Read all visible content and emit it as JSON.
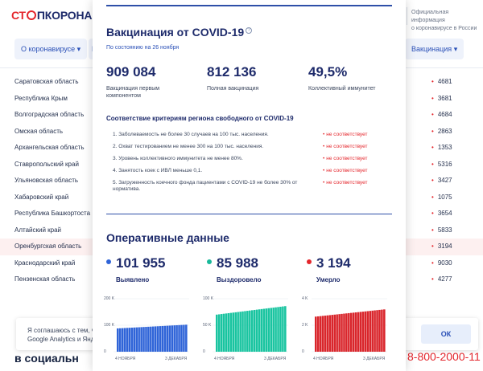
{
  "background": {
    "logo": {
      "part1": "СТ",
      "part2": "ПКОРОНАВИ"
    },
    "official_info": [
      "Официальная информация",
      "о коронавирусе в России"
    ],
    "nav": {
      "about": "О коронавирусе",
      "m": "М",
      "vaccination": "Вакцинация"
    },
    "regions": [
      {
        "name": "Саратовская область",
        "value": "4681"
      },
      {
        "name": "Республика Крым",
        "value": "3681"
      },
      {
        "name": "Волгоградская область",
        "value": "4684"
      },
      {
        "name": "Омская область",
        "value": "2863"
      },
      {
        "name": "Архангельская область",
        "value": "1353"
      },
      {
        "name": "Ставропольский край",
        "value": "5316"
      },
      {
        "name": "Ульяновская область",
        "value": "3427"
      },
      {
        "name": "Хабаровский край",
        "value": "1075"
      },
      {
        "name": "Республика Башкортоста",
        "value": "3654"
      },
      {
        "name": "Алтайский край",
        "value": "5833"
      },
      {
        "name": "Оренбургская область",
        "value": "3194",
        "highlight": true
      },
      {
        "name": "Краснодарский край",
        "value": "9030"
      },
      {
        "name": "Пензенская область",
        "value": "4277"
      }
    ],
    "cookie": {
      "line1": "Я соглашаюсь с тем, ч",
      "line2": "Google Analytics и Янд",
      "ok": "ОК"
    },
    "social": "в социальн",
    "phone": "8-800-2000-11"
  },
  "vaccination": {
    "title": "Вакцинация от COVID-19",
    "info_icon": "?",
    "date": "По состоянию на 26 ноября",
    "stats": [
      {
        "value": "909 084",
        "label": "Вакцинация первым компонентом"
      },
      {
        "value": "812 136",
        "label": "Полная вакцинация"
      },
      {
        "value": "49,5%",
        "label": "Коллективный иммунитет"
      }
    ],
    "criteria_title": "Соответствие критериям региона свободного от COVID-19",
    "criteria": [
      {
        "text": "1. Заболеваемость не более 30 случаев на 100 тыс. населения.",
        "status": "не соответствует"
      },
      {
        "text": "2. Охват тестированием не менее 300 на 100 тыс. населения.",
        "status": "не соответствует"
      },
      {
        "text": "3. Уровень коллективного иммунитета не менее 80%.",
        "status": "не соответствует"
      },
      {
        "text": "4. Занятость коек с ИВЛ меньше 0,1.",
        "status": "не соответствует"
      },
      {
        "text": "5. Загруженность коечного фонда пациентами с COVID-19 не более 30% от норматива.",
        "status": "не соответствует"
      }
    ]
  },
  "operational": {
    "title": "Оперативные данные",
    "stats": [
      {
        "value": "101 955",
        "label": "Выявлено",
        "color": "#2f64d8"
      },
      {
        "value": "85 988",
        "label": "Выздоровело",
        "color": "#19b99a"
      },
      {
        "value": "3 194",
        "label": "Умерло",
        "color": "#e4262c"
      }
    ]
  },
  "chart_data": [
    {
      "type": "bar",
      "color": "#2f64d8",
      "y_ticks": [
        "200 K",
        "100 K",
        "0"
      ],
      "ylim": [
        0,
        200000
      ],
      "x_labels": [
        "4 НОЯБРЯ",
        "3 ДЕКАБРЯ"
      ],
      "start": 88000,
      "end": 102000,
      "bars": 30
    },
    {
      "type": "bar",
      "color": "#19c4a0",
      "y_ticks": [
        "100 K",
        "50 K",
        "0"
      ],
      "ylim": [
        0,
        100000
      ],
      "x_labels": [
        "4 НОЯБРЯ",
        "3 ДЕКАБРЯ"
      ],
      "start": 70000,
      "end": 86000,
      "bars": 30
    },
    {
      "type": "bar",
      "color": "#d9252b",
      "y_ticks": [
        "4 K",
        "2 K",
        "0"
      ],
      "ylim": [
        0,
        4000
      ],
      "x_labels": [
        "4 НОЯБРЯ",
        "3 ДЕКАБРЯ"
      ],
      "start": 2650,
      "end": 3194,
      "bars": 30
    }
  ]
}
